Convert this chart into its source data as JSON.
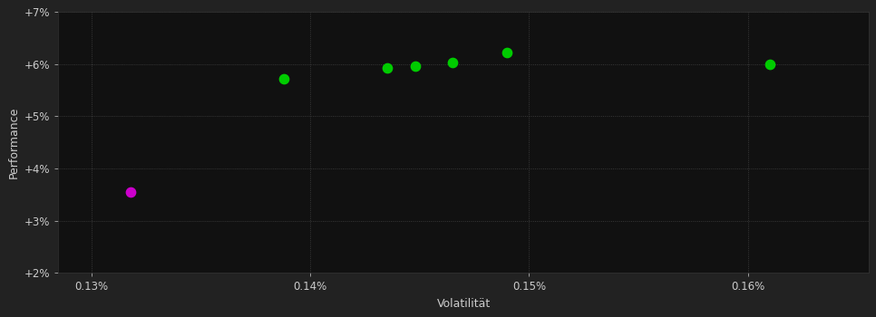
{
  "background_color": "#222222",
  "plot_bg_color": "#111111",
  "grid_color": "#444444",
  "grid_linestyle": ":",
  "xlabel": "Volatilität",
  "ylabel": "Performance",
  "xlabel_color": "#cccccc",
  "ylabel_color": "#cccccc",
  "tick_color": "#cccccc",
  "xlim": [
    0.001285,
    0.001655
  ],
  "ylim": [
    0.02,
    0.07
  ],
  "xticks": [
    0.0013,
    0.0014,
    0.0015,
    0.0016
  ],
  "xtick_labels": [
    "0.13%",
    "0.14%",
    "0.15%",
    "0.16%"
  ],
  "yticks": [
    0.02,
    0.03,
    0.04,
    0.05,
    0.06,
    0.07
  ],
  "ytick_labels": [
    "+2%",
    "+3%",
    "+4%",
    "+5%",
    "+6%",
    "+7%"
  ],
  "green_points": [
    [
      0.001388,
      0.0572
    ],
    [
      0.001435,
      0.0593
    ],
    [
      0.001448,
      0.0597
    ],
    [
      0.001465,
      0.0603
    ],
    [
      0.00149,
      0.0622
    ],
    [
      0.00161,
      0.06
    ]
  ],
  "magenta_points": [
    [
      0.001318,
      0.0355
    ]
  ],
  "green_color": "#00cc00",
  "magenta_color": "#cc00cc",
  "marker_size": 55,
  "font_size_axis_label": 9,
  "font_size_tick": 8.5
}
